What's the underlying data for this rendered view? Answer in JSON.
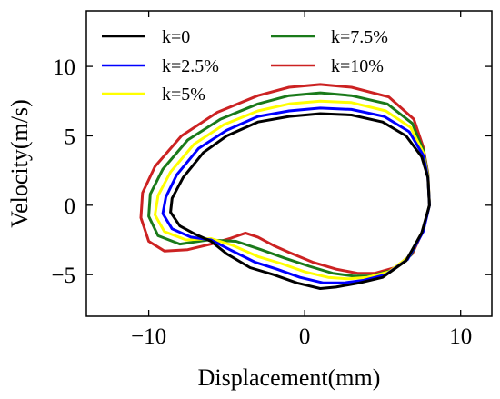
{
  "chart_data": {
    "type": "line",
    "xlabel": "Displacement(mm)",
    "ylabel": "Velocity(m/s)",
    "xlim": [
      -14,
      12
    ],
    "ylim": [
      -8,
      14
    ],
    "xticks": [
      -10,
      0,
      10
    ],
    "xtick_labels": [
      "−10",
      "0",
      "10"
    ],
    "yticks": [
      -5,
      0,
      5,
      10
    ],
    "ytick_labels": [
      "−5",
      "0",
      "5",
      "10"
    ],
    "grid": false,
    "legend_position": "top-left, two columns",
    "series": [
      {
        "name": "k=0",
        "color": "#000000",
        "points": [
          [
            8.0,
            0.0
          ],
          [
            7.9,
            2.0
          ],
          [
            7.5,
            3.5
          ],
          [
            6.5,
            5.0
          ],
          [
            5.0,
            6.0
          ],
          [
            3.0,
            6.5
          ],
          [
            1.0,
            6.6
          ],
          [
            -1.0,
            6.4
          ],
          [
            -3.0,
            6.0
          ],
          [
            -5.0,
            5.0
          ],
          [
            -6.5,
            3.8
          ],
          [
            -7.8,
            2.0
          ],
          [
            -8.5,
            0.5
          ],
          [
            -8.6,
            -0.5
          ],
          [
            -8.0,
            -1.5
          ],
          [
            -7.0,
            -2.1
          ],
          [
            -6.0,
            -2.6
          ],
          [
            -5.0,
            -3.5
          ],
          [
            -3.5,
            -4.5
          ],
          [
            -2.0,
            -5.0
          ],
          [
            -0.5,
            -5.6
          ],
          [
            1.0,
            -6.0
          ],
          [
            2.0,
            -5.9
          ],
          [
            3.5,
            -5.6
          ],
          [
            5.0,
            -5.2
          ],
          [
            6.5,
            -4.0
          ],
          [
            7.5,
            -2.0
          ],
          [
            8.0,
            0.0
          ]
        ]
      },
      {
        "name": "k=2.5%",
        "color": "#0000ff",
        "points": [
          [
            8.0,
            0.0
          ],
          [
            7.9,
            2.0
          ],
          [
            7.6,
            3.6
          ],
          [
            6.7,
            5.3
          ],
          [
            5.1,
            6.4
          ],
          [
            3.0,
            6.9
          ],
          [
            1.0,
            7.0
          ],
          [
            -1.0,
            6.8
          ],
          [
            -3.0,
            6.4
          ],
          [
            -5.0,
            5.4
          ],
          [
            -6.8,
            4.1
          ],
          [
            -8.2,
            2.2
          ],
          [
            -8.9,
            0.6
          ],
          [
            -9.1,
            -0.6
          ],
          [
            -8.5,
            -1.7
          ],
          [
            -7.3,
            -2.3
          ],
          [
            -6.0,
            -2.5
          ],
          [
            -4.8,
            -3.2
          ],
          [
            -3.2,
            -4.1
          ],
          [
            -1.8,
            -4.6
          ],
          [
            -0.3,
            -5.2
          ],
          [
            1.2,
            -5.6
          ],
          [
            2.5,
            -5.6
          ],
          [
            3.8,
            -5.4
          ],
          [
            5.2,
            -5.0
          ],
          [
            6.6,
            -3.9
          ],
          [
            7.6,
            -1.9
          ],
          [
            8.0,
            0.0
          ]
        ]
      },
      {
        "name": "k=5%",
        "color": "#ffff00",
        "points": [
          [
            8.0,
            0.0
          ],
          [
            7.9,
            2.1
          ],
          [
            7.6,
            3.8
          ],
          [
            6.8,
            5.6
          ],
          [
            5.2,
            6.8
          ],
          [
            3.0,
            7.4
          ],
          [
            1.0,
            7.5
          ],
          [
            -1.0,
            7.3
          ],
          [
            -3.0,
            6.8
          ],
          [
            -5.2,
            5.8
          ],
          [
            -7.1,
            4.4
          ],
          [
            -8.6,
            2.4
          ],
          [
            -9.4,
            0.7
          ],
          [
            -9.6,
            -0.7
          ],
          [
            -9.0,
            -1.9
          ],
          [
            -7.6,
            -2.5
          ],
          [
            -6.0,
            -2.4
          ],
          [
            -4.6,
            -2.9
          ],
          [
            -3.0,
            -3.7
          ],
          [
            -1.5,
            -4.2
          ],
          [
            0.0,
            -4.8
          ],
          [
            1.5,
            -5.2
          ],
          [
            2.8,
            -5.3
          ],
          [
            4.0,
            -5.2
          ],
          [
            5.4,
            -4.8
          ],
          [
            6.7,
            -3.7
          ],
          [
            7.6,
            -1.8
          ],
          [
            8.0,
            0.0
          ]
        ]
      },
      {
        "name": "k=7.5%",
        "color": "#1a7a1a",
        "points": [
          [
            8.0,
            0.0
          ],
          [
            7.9,
            2.2
          ],
          [
            7.6,
            4.0
          ],
          [
            6.9,
            5.9
          ],
          [
            5.3,
            7.3
          ],
          [
            3.0,
            7.9
          ],
          [
            1.0,
            8.1
          ],
          [
            -1.0,
            7.9
          ],
          [
            -3.0,
            7.3
          ],
          [
            -5.4,
            6.2
          ],
          [
            -7.5,
            4.7
          ],
          [
            -9.1,
            2.6
          ],
          [
            -9.9,
            0.8
          ],
          [
            -10.0,
            -0.8
          ],
          [
            -9.4,
            -2.2
          ],
          [
            -8.0,
            -2.8
          ],
          [
            -6.2,
            -2.5
          ],
          [
            -4.4,
            -2.6
          ],
          [
            -2.8,
            -3.2
          ],
          [
            -1.3,
            -3.8
          ],
          [
            0.3,
            -4.4
          ],
          [
            1.8,
            -4.9
          ],
          [
            3.1,
            -5.1
          ],
          [
            4.2,
            -5.1
          ],
          [
            5.6,
            -4.7
          ],
          [
            6.8,
            -3.6
          ],
          [
            7.6,
            -1.8
          ],
          [
            8.0,
            0.0
          ]
        ]
      },
      {
        "name": "k=10%",
        "color": "#cc2222",
        "points": [
          [
            8.0,
            0.0
          ],
          [
            7.9,
            2.3
          ],
          [
            7.6,
            4.2
          ],
          [
            7.0,
            6.2
          ],
          [
            5.4,
            7.8
          ],
          [
            3.0,
            8.5
          ],
          [
            1.0,
            8.7
          ],
          [
            -1.0,
            8.5
          ],
          [
            -3.0,
            7.9
          ],
          [
            -5.6,
            6.7
          ],
          [
            -7.9,
            5.0
          ],
          [
            -9.6,
            2.8
          ],
          [
            -10.4,
            0.9
          ],
          [
            -10.5,
            -0.9
          ],
          [
            -10.0,
            -2.6
          ],
          [
            -9.0,
            -3.3
          ],
          [
            -7.5,
            -3.2
          ],
          [
            -6.0,
            -2.8
          ],
          [
            -4.8,
            -2.4
          ],
          [
            -3.8,
            -2.0
          ],
          [
            -3.0,
            -2.3
          ],
          [
            -2.0,
            -2.9
          ],
          [
            -1.0,
            -3.4
          ],
          [
            0.5,
            -4.1
          ],
          [
            2.0,
            -4.6
          ],
          [
            3.4,
            -4.9
          ],
          [
            4.5,
            -4.9
          ],
          [
            5.8,
            -4.5
          ],
          [
            6.9,
            -3.5
          ],
          [
            7.6,
            -1.8
          ],
          [
            8.0,
            0.0
          ]
        ]
      }
    ]
  }
}
